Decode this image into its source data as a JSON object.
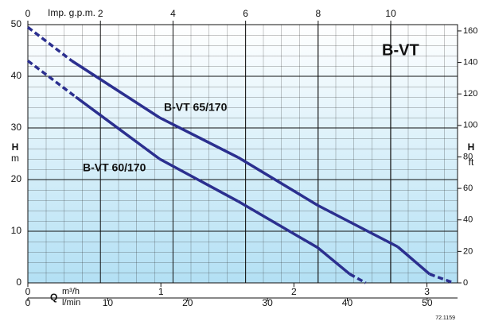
{
  "chart_data": {
    "type": "line",
    "title": "B-VT",
    "code": "72.1159",
    "x_label": "Q",
    "x_unit": "m³/h",
    "xlim": [
      0,
      3.23
    ],
    "xticks": [
      0,
      1,
      2,
      3
    ],
    "x2_unit": "l/min",
    "x2lim": [
      0,
      53.8
    ],
    "x2ticks": [
      0,
      10,
      20,
      30,
      40,
      50
    ],
    "x3_label": "Imp. g.p.m.",
    "x3lim": [
      0,
      11.84
    ],
    "x3ticks": [
      0,
      2,
      4,
      6,
      8,
      10
    ],
    "y_label": "H",
    "y_unit": "m",
    "ylim": [
      0,
      50
    ],
    "yticks": [
      0,
      10,
      20,
      30,
      40,
      50
    ],
    "y2_label": "H",
    "y2_unit": "ft",
    "y2lim": [
      0,
      164
    ],
    "y2ticks": [
      0,
      20,
      40,
      60,
      80,
      100,
      120,
      140,
      160
    ],
    "grid": true,
    "series": [
      {
        "name": "B-VT 65/170",
        "color": "#2b2f8f",
        "x": [
          0,
          0.33,
          0.99,
          1.58,
          2.18,
          2.78,
          3.02,
          3.2
        ],
        "values": [
          49.5,
          43,
          32,
          24.3,
          15,
          7,
          1.7,
          0
        ],
        "dashed": [
          true,
          false,
          false,
          false,
          false,
          false,
          true
        ]
      },
      {
        "name": "B-VT 60/170",
        "color": "#2b2f8f",
        "x": [
          0,
          0.36,
          0.99,
          1.58,
          2.18,
          2.42,
          2.54
        ],
        "values": [
          43,
          36,
          24,
          15.8,
          6.8,
          1.7,
          0
        ],
        "dashed": [
          true,
          false,
          false,
          false,
          false,
          true
        ]
      }
    ]
  }
}
